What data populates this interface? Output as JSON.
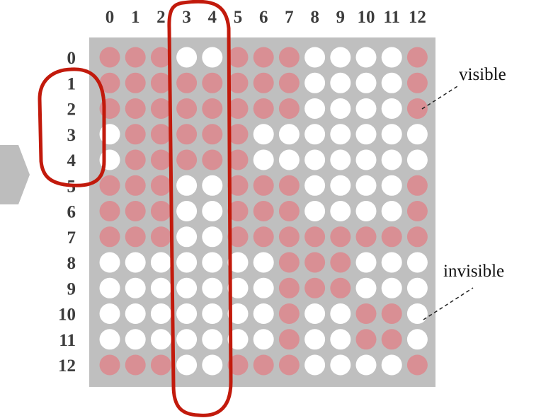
{
  "colors": {
    "panel": "#bfbfbf",
    "visible_dot": "#d98f94",
    "invisible_dot": "#ffffff",
    "highlight_stroke": "#c21a0c",
    "arrow": "#bdbdbd",
    "label_text": "#3d3d3d"
  },
  "column_labels": [
    "0",
    "1",
    "2",
    "3",
    "4",
    "5",
    "6",
    "7",
    "8",
    "9",
    "10",
    "11",
    "12"
  ],
  "row_labels": [
    "0",
    "1",
    "2",
    "3",
    "4",
    "5",
    "6",
    "7",
    "8",
    "9",
    "10",
    "11",
    "12"
  ],
  "grid": [
    "1110011100001",
    "1111111100001",
    "1111111100001",
    "0111110000000",
    "0111110000000",
    "1110011100001",
    "1110011100001",
    "1110011111111",
    "0000000111000",
    "0000000111000",
    "0000000100110",
    "0000000100110",
    "1110011100001"
  ],
  "legend": {
    "visible": "visible",
    "invisible": "invisible"
  },
  "highlights": {
    "columns": [
      "3",
      "4"
    ],
    "rows": [
      "1",
      "2",
      "3",
      "4"
    ]
  }
}
